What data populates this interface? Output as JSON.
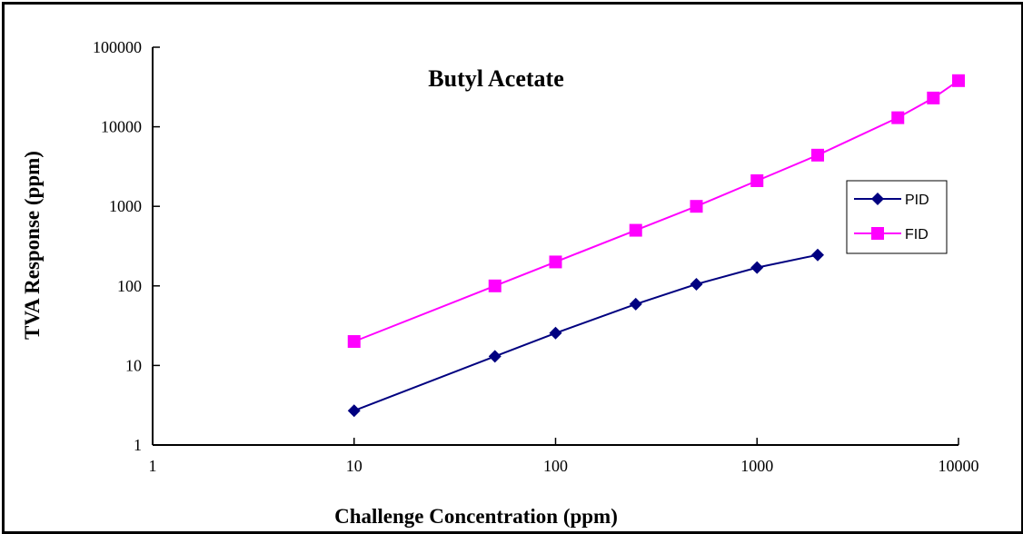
{
  "chart_data": {
    "type": "line",
    "title": "Butyl Acetate",
    "xlabel": "Challenge Concentration (ppm)",
    "ylabel": "TVA Response (ppm)",
    "xscale": "log",
    "yscale": "log",
    "xlim": [
      1,
      10000
    ],
    "ylim": [
      1,
      100000
    ],
    "xticks": [
      "1",
      "10",
      "100",
      "1000",
      "10000"
    ],
    "yticks": [
      "1",
      "10",
      "100",
      "1000",
      "10000",
      "100000"
    ],
    "grid": false,
    "legend_position": "right",
    "series": [
      {
        "name": "PID",
        "color": "#000080",
        "marker": "diamond",
        "x": [
          10,
          50,
          100,
          250,
          500,
          1000,
          2000
        ],
        "y": [
          2.7,
          13,
          25.5,
          59,
          105,
          170,
          245
        ]
      },
      {
        "name": "FID",
        "color": "#FF00FF",
        "marker": "square",
        "x": [
          10,
          50,
          100,
          250,
          500,
          1000,
          2000,
          5000,
          7500,
          10000
        ],
        "y": [
          20,
          100,
          200,
          500,
          1000,
          2100,
          4400,
          13000,
          23000,
          38000
        ]
      }
    ]
  }
}
